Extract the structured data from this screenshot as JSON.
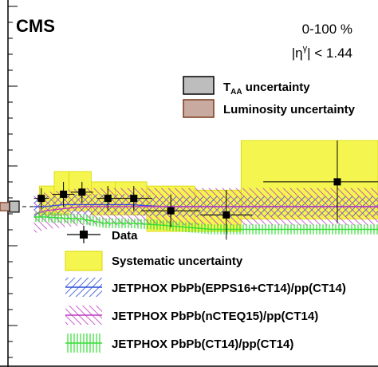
{
  "chart_data": {
    "type": "scatter",
    "experiment_label": "CMS",
    "centrality": "0-100 %",
    "eta_cut": {
      "prefix": "|η",
      "sup": "γ",
      "suffix": "| < 1.44"
    },
    "xlabel": "",
    "ylabel": "",
    "xlim": [
      0,
      1
    ],
    "ylim": [
      0,
      1
    ],
    "reference_value": 0.5,
    "global_uncertainties": [
      {
        "name_main": "T",
        "name_sub": "AA",
        "name_rest": " uncertainty",
        "color": "#bdbdbd",
        "border": "#000000",
        "value": 0.04
      },
      {
        "name_main": "Luminosity uncertainty",
        "name_sub": "",
        "name_rest": "",
        "color": "#c8aaa0",
        "border": "#7a3a1a",
        "value": 0.03
      }
    ],
    "data": {
      "name": "Data",
      "x": [
        0.09,
        0.15,
        0.2,
        0.27,
        0.34,
        0.44,
        0.59,
        0.89
      ],
      "y": [
        0.52,
        0.53,
        0.535,
        0.52,
        0.52,
        0.49,
        0.48,
        0.56
      ],
      "xerr_lo": [
        0.02,
        0.03,
        0.03,
        0.03,
        0.05,
        0.08,
        0.07,
        0.2
      ],
      "xerr_hi": [
        0.02,
        0.03,
        0.03,
        0.03,
        0.05,
        0.08,
        0.07,
        0.2
      ],
      "yerr": [
        0.025,
        0.03,
        0.025,
        0.03,
        0.03,
        0.04,
        0.06,
        0.1
      ],
      "color": "#000000"
    },
    "systematic_uncertainty": {
      "name": "Systematic uncertainty",
      "color": "#f5f550",
      "border": "#d8d800",
      "boxes": [
        {
          "x0": 0.085,
          "x1": 0.125,
          "y0": 0.48,
          "y1": 0.55
        },
        {
          "x0": 0.125,
          "x1": 0.165,
          "y0": 0.48,
          "y1": 0.585
        },
        {
          "x0": 0.165,
          "x1": 0.225,
          "y0": 0.49,
          "y1": 0.585
        },
        {
          "x0": 0.225,
          "x1": 0.29,
          "y0": 0.48,
          "y1": 0.56
        },
        {
          "x0": 0.29,
          "x1": 0.375,
          "y0": 0.48,
          "y1": 0.56
        },
        {
          "x0": 0.375,
          "x1": 0.505,
          "y0": 0.44,
          "y1": 0.55
        },
        {
          "x0": 0.505,
          "x1": 0.63,
          "y0": 0.44,
          "y1": 0.54
        },
        {
          "x0": 0.63,
          "x1": 1.0,
          "y0": 0.47,
          "y1": 0.66
        }
      ]
    },
    "theory": [
      {
        "name": "JETPHOX PbPb(EPPS16+CT14)/pp(CT14)",
        "color": "#2b4fd8",
        "pattern": "blue-hatch",
        "x": [
          0.07,
          0.1,
          0.15,
          0.2,
          0.26,
          0.33,
          0.42,
          0.55,
          0.65,
          1.0
        ],
        "y": [
          0.5,
          0.5,
          0.505,
          0.505,
          0.505,
          0.505,
          0.5,
          0.5,
          0.5,
          0.5
        ],
        "band": 0.025
      },
      {
        "name": "JETPHOX PbPb(nCTEQ15)/pp(CT14)",
        "color": "#c03ac0",
        "pattern": "magenta-hatch",
        "x": [
          0.07,
          0.1,
          0.15,
          0.2,
          0.26,
          0.33,
          0.42,
          0.55,
          0.65,
          1.0
        ],
        "y": [
          0.48,
          0.49,
          0.495,
          0.5,
          0.5,
          0.5,
          0.5,
          0.5,
          0.5,
          0.5
        ],
        "band": 0.045
      },
      {
        "name": "JETPHOX PbPb(CT14)/pp(CT14)",
        "color": "#33dd33",
        "pattern": "green-vertical",
        "x": [
          0.07,
          0.1,
          0.15,
          0.2,
          0.26,
          0.33,
          0.42,
          0.55,
          0.65,
          1.0
        ],
        "y": [
          0.475,
          0.475,
          0.472,
          0.47,
          0.46,
          0.46,
          0.455,
          0.445,
          0.445,
          0.445
        ],
        "band": 0.012
      }
    ],
    "legend_position": "bottom",
    "grid": false
  }
}
